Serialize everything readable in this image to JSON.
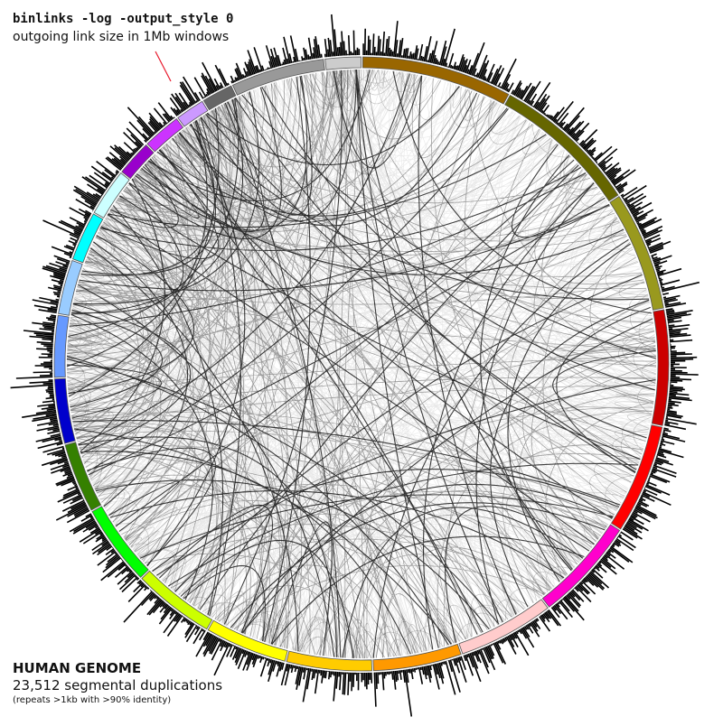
{
  "annotation": {
    "command": "binlinks -log -output_style 0",
    "description": "outgoing link size in 1Mb windows",
    "pointer_color": "#e8192c"
  },
  "caption": {
    "title": "HUMAN GENOME",
    "subtitle": "23,512 segmental duplications",
    "note": "(repeats >1kb with >90% identity)"
  },
  "figure": {
    "type": "circos-genome-plot",
    "link_color": "#000000",
    "histogram_color": "#000000",
    "ring_outline": "#555555",
    "chromosomes": [
      {
        "order": 1,
        "size": 249,
        "color": "#996600"
      },
      {
        "order": 2,
        "size": 243,
        "color": "#666600"
      },
      {
        "order": 3,
        "size": 198,
        "color": "#99991e"
      },
      {
        "order": 4,
        "size": 191,
        "color": "#cc0000"
      },
      {
        "order": 5,
        "size": 181,
        "color": "#ff0000"
      },
      {
        "order": 6,
        "size": 171,
        "color": "#ff00cc"
      },
      {
        "order": 7,
        "size": 159,
        "color": "#ffcccc"
      },
      {
        "order": 8,
        "size": 146,
        "color": "#ff9900"
      },
      {
        "order": 9,
        "size": 141,
        "color": "#ffcc00"
      },
      {
        "order": 10,
        "size": 136,
        "color": "#ffff00"
      },
      {
        "order": 11,
        "size": 135,
        "color": "#ccff00"
      },
      {
        "order": 12,
        "size": 134,
        "color": "#00ff00"
      },
      {
        "order": 13,
        "size": 115,
        "color": "#358000"
      },
      {
        "order": 14,
        "size": 107,
        "color": "#0000cc"
      },
      {
        "order": 15,
        "size": 102,
        "color": "#6699ff"
      },
      {
        "order": 16,
        "size": 90,
        "color": "#99ccff"
      },
      {
        "order": 17,
        "size": 81,
        "color": "#00ffff"
      },
      {
        "order": 18,
        "size": 78,
        "color": "#ccffff"
      },
      {
        "order": 19,
        "size": 59,
        "color": "#9900cc"
      },
      {
        "order": 20,
        "size": 63,
        "color": "#cc33ff"
      },
      {
        "order": 21,
        "size": 48,
        "color": "#cc99ff"
      },
      {
        "order": 22,
        "size": 51,
        "color": "#666666"
      },
      {
        "order": 23,
        "size": 155,
        "color": "#999999"
      },
      {
        "order": 24,
        "size": 59,
        "color": "#cccccc"
      }
    ]
  }
}
